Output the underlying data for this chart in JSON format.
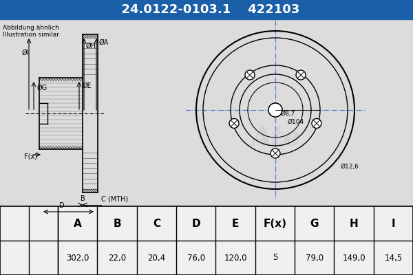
{
  "part_number": "24.0122-0103.1",
  "part_number2": "422103",
  "subtitle1": "Abbildung ähnlich",
  "subtitle2": "Illustration similar",
  "header_bg": "#1a5fa8",
  "header_text_color": "#ffffff",
  "bg_color": "#ffffff",
  "table_headers": [
    "A",
    "B",
    "C",
    "D",
    "E",
    "F(x)",
    "G",
    "H",
    "I"
  ],
  "table_values": [
    "302,0",
    "22,0",
    "20,4",
    "76,0",
    "120,0",
    "5",
    "79,0",
    "149,0",
    "14,5"
  ],
  "dim_labels": [
    "ØI",
    "ØG",
    "ØE",
    "ØH",
    "ØA",
    "F(x)",
    "B",
    "C (MTH)",
    "D"
  ],
  "annotations": [
    "Ø8,7",
    "Ø104",
    "Ø12,6"
  ],
  "line_color": "#000000",
  "drawing_bg": "#e8e8e8",
  "watermark_color": "#c0c0c0"
}
